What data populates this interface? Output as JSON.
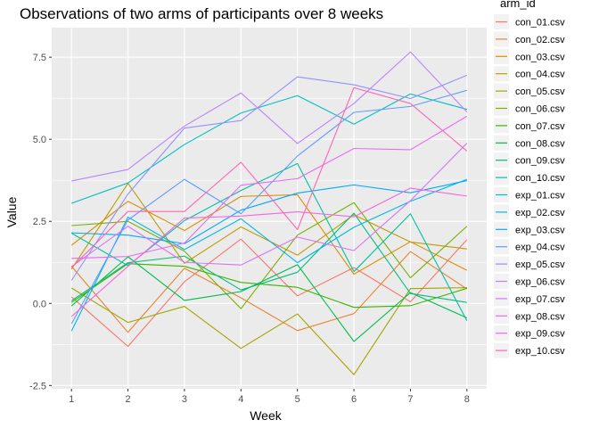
{
  "chart_data": {
    "type": "line",
    "title": "Observations of two arms of participants over 8 weeks",
    "xlabel": "Week",
    "ylabel": "Value",
    "x": [
      1,
      2,
      3,
      4,
      5,
      6,
      7,
      8
    ],
    "xlim": [
      0.65,
      8.35
    ],
    "ylim": [
      -2.6,
      8.4
    ],
    "x_ticks": [
      "1",
      "2",
      "3",
      "4",
      "5",
      "6",
      "7",
      "8"
    ],
    "y_ticks": [
      "-2.5",
      "0.0",
      "2.5",
      "5.0",
      "7.5"
    ],
    "y_tick_values": [
      -2.5,
      0,
      2.5,
      5,
      7.5
    ],
    "grid": true,
    "legend": {
      "title": "arm_id",
      "placement": "right"
    },
    "series": [
      {
        "name": "con_01.csv",
        "color": "#F8766D",
        "values": [
          0.2,
          -1.31,
          0.66,
          1.96,
          0.23,
          1.09,
          0.05,
          1.94
        ]
      },
      {
        "name": "con_02.csv",
        "color": "#EA8331",
        "values": [
          1.13,
          -0.88,
          1.07,
          0.17,
          -0.83,
          -0.31,
          1.58,
          0.44
        ]
      },
      {
        "name": "con_03.csv",
        "color": "#D89000",
        "values": [
          1.77,
          3.11,
          2.22,
          3.26,
          3.31,
          0.89,
          1.88,
          1.01
        ]
      },
      {
        "name": "con_04.csv",
        "color": "#C09B00",
        "values": [
          1.04,
          3.66,
          1.22,
          2.33,
          1.47,
          2.7,
          1.87,
          1.66
        ]
      },
      {
        "name": "con_05.csv",
        "color": "#A3A500",
        "values": [
          0.47,
          -0.58,
          -0.09,
          -1.37,
          -0.32,
          -2.17,
          0.45,
          0.48
        ]
      },
      {
        "name": "con_06.csv",
        "color": "#7CAE00",
        "values": [
          2.37,
          2.5,
          1.59,
          -0.16,
          2.08,
          3.07,
          0.78,
          2.35
        ]
      },
      {
        "name": "con_07.csv",
        "color": "#39B600",
        "values": [
          0.03,
          1.21,
          1.13,
          0.64,
          0.49,
          -0.12,
          -0.07,
          0.46
        ]
      },
      {
        "name": "con_08.csv",
        "color": "#00BB4E",
        "values": [
          -0.08,
          1.42,
          0.09,
          0.36,
          1.18,
          -1.16,
          0.33,
          -0.44
        ]
      },
      {
        "name": "con_09.csv",
        "color": "#00BF7D",
        "values": [
          0.08,
          1.24,
          1.44,
          0.41,
          0.95,
          2.75,
          0.3,
          0.03
        ]
      },
      {
        "name": "con_10.csv",
        "color": "#00C1A3",
        "values": [
          2.14,
          1.15,
          2.52,
          3.44,
          4.26,
          0.97,
          2.73,
          -0.53
        ]
      },
      {
        "name": "exp_01.csv",
        "color": "#00BFC4",
        "values": [
          3.05,
          3.67,
          4.84,
          5.8,
          6.33,
          5.46,
          6.38,
          5.91
        ]
      },
      {
        "name": "exp_02.csv",
        "color": "#00B8E7",
        "values": [
          -0.84,
          2.63,
          1.64,
          2.58,
          1.24,
          2.32,
          3.11,
          3.78
        ]
      },
      {
        "name": "exp_03.csv",
        "color": "#00A9FF",
        "values": [
          2.15,
          2.08,
          1.82,
          2.84,
          3.36,
          3.61,
          3.37,
          3.74
        ]
      },
      {
        "name": "exp_04.csv",
        "color": "#619CFF",
        "values": [
          -0.62,
          2.54,
          3.78,
          2.73,
          4.49,
          5.82,
          6.0,
          6.49
        ]
      },
      {
        "name": "exp_05.csv",
        "color": "#9590FF",
        "values": [
          0.7,
          3.33,
          5.34,
          5.57,
          6.9,
          6.66,
          6.24,
          6.95
        ]
      },
      {
        "name": "exp_06.csv",
        "color": "#B983FF",
        "values": [
          3.73,
          4.08,
          5.4,
          6.41,
          4.87,
          6.09,
          7.66,
          5.83
        ]
      },
      {
        "name": "exp_07.csv",
        "color": "#D575FE",
        "values": [
          1.12,
          2.35,
          1.25,
          1.17,
          2.02,
          1.61,
          3.13,
          4.88
        ]
      },
      {
        "name": "exp_08.csv",
        "color": "#E76BF3",
        "values": [
          1.37,
          1.43,
          1.84,
          3.6,
          3.8,
          4.72,
          4.68,
          5.7
        ]
      },
      {
        "name": "exp_09.csv",
        "color": "#F564E3",
        "values": [
          -0.4,
          1.13,
          2.6,
          2.66,
          2.79,
          2.64,
          3.51,
          3.27
        ]
      },
      {
        "name": "exp_10.csv",
        "color": "#FF64B0",
        "values": [
          1.09,
          2.8,
          2.8,
          4.3,
          2.25,
          6.57,
          6.09,
          4.64
        ]
      }
    ]
  }
}
